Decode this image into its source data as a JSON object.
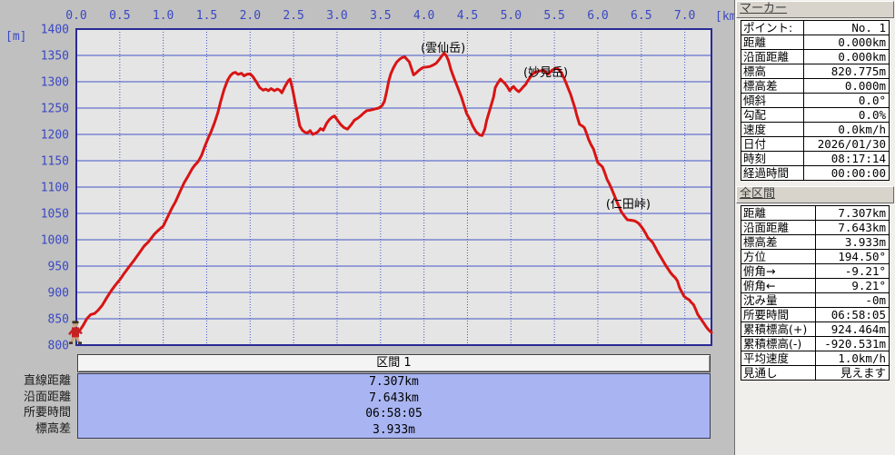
{
  "colors": {
    "window_bg": "#c0c0c0",
    "plot_bg": "#e5e5e5",
    "grid_blue": "#4455c8",
    "plot_border": "#2a2a96",
    "tick_text": "#3a48c4",
    "curve_red": "#d81414",
    "section_fill": "#a9b5f2",
    "panel_bg": "#f0efec",
    "header_bar": "#d8d4cc"
  },
  "chart_data": {
    "type": "line",
    "title": "",
    "x_unit_label": "[km]",
    "y_unit_label": "[m]",
    "xlabel": "",
    "ylabel": "",
    "xlim": [
      0,
      7.307
    ],
    "ylim": [
      800,
      1400
    ],
    "grid": true,
    "x_ticks": [
      "0.0",
      "0.5",
      "1.0",
      "1.5",
      "2.0",
      "2.5",
      "3.0",
      "3.5",
      "4.0",
      "4.5",
      "5.0",
      "5.5",
      "6.0",
      "6.5",
      "7.0"
    ],
    "y_ticks": [
      1400,
      1350,
      1300,
      1250,
      1200,
      1150,
      1100,
      1050,
      1000,
      950,
      900,
      850,
      800
    ],
    "annotations": [
      {
        "text": "(雲仙岳)",
        "x": 4.22,
        "y": 1357
      },
      {
        "text": "(妙見岳)",
        "x": 5.4,
        "y": 1310
      },
      {
        "text": "(仁田峠)",
        "x": 6.35,
        "y": 1060
      }
    ],
    "start_marker": {
      "icon": "hiker-icon",
      "x": 0,
      "y": 820
    },
    "series": [
      {
        "name": "標高",
        "color": "#d81414",
        "points": [
          [
            0.0,
            820
          ],
          [
            0.04,
            828
          ],
          [
            0.08,
            838
          ],
          [
            0.12,
            850
          ],
          [
            0.165,
            858
          ],
          [
            0.21,
            860
          ],
          [
            0.25,
            866
          ],
          [
            0.3,
            876
          ],
          [
            0.35,
            890
          ],
          [
            0.4,
            903
          ],
          [
            0.45,
            914
          ],
          [
            0.5,
            924
          ],
          [
            0.55,
            936
          ],
          [
            0.6,
            947
          ],
          [
            0.66,
            960
          ],
          [
            0.72,
            974
          ],
          [
            0.78,
            988
          ],
          [
            0.83,
            996
          ],
          [
            0.9,
            1011
          ],
          [
            0.95,
            1019
          ],
          [
            1.0,
            1026
          ],
          [
            1.05,
            1043
          ],
          [
            1.1,
            1060
          ],
          [
            1.14,
            1072
          ],
          [
            1.19,
            1090
          ],
          [
            1.24,
            1108
          ],
          [
            1.29,
            1122
          ],
          [
            1.33,
            1134
          ],
          [
            1.36,
            1141
          ],
          [
            1.4,
            1148
          ],
          [
            1.44,
            1160
          ],
          [
            1.48,
            1178
          ],
          [
            1.51,
            1190
          ],
          [
            1.55,
            1205
          ],
          [
            1.59,
            1222
          ],
          [
            1.63,
            1242
          ],
          [
            1.66,
            1262
          ],
          [
            1.7,
            1285
          ],
          [
            1.74,
            1303
          ],
          [
            1.77,
            1311
          ],
          [
            1.8,
            1316
          ],
          [
            1.83,
            1318
          ],
          [
            1.86,
            1314
          ],
          [
            1.9,
            1316
          ],
          [
            1.93,
            1311
          ],
          [
            1.96,
            1314
          ],
          [
            2.0,
            1315
          ],
          [
            2.03,
            1310
          ],
          [
            2.07,
            1300
          ],
          [
            2.11,
            1289
          ],
          [
            2.15,
            1284
          ],
          [
            2.18,
            1286
          ],
          [
            2.21,
            1283
          ],
          [
            2.24,
            1287
          ],
          [
            2.28,
            1283
          ],
          [
            2.31,
            1286
          ],
          [
            2.34,
            1284
          ],
          [
            2.365,
            1279
          ],
          [
            2.4,
            1291
          ],
          [
            2.44,
            1302
          ],
          [
            2.46,
            1305
          ],
          [
            2.49,
            1284
          ],
          [
            2.52,
            1258
          ],
          [
            2.545,
            1238
          ],
          [
            2.57,
            1216
          ],
          [
            2.6,
            1208
          ],
          [
            2.63,
            1204
          ],
          [
            2.66,
            1203
          ],
          [
            2.69,
            1207
          ],
          [
            2.72,
            1200
          ],
          [
            2.75,
            1202
          ],
          [
            2.78,
            1205
          ],
          [
            2.81,
            1211
          ],
          [
            2.84,
            1208
          ],
          [
            2.88,
            1221
          ],
          [
            2.91,
            1228
          ],
          [
            2.945,
            1233
          ],
          [
            2.97,
            1235
          ],
          [
            3.0,
            1228
          ],
          [
            3.04,
            1219
          ],
          [
            3.08,
            1213
          ],
          [
            3.12,
            1210
          ],
          [
            3.16,
            1218
          ],
          [
            3.2,
            1227
          ],
          [
            3.24,
            1231
          ],
          [
            3.27,
            1235
          ],
          [
            3.31,
            1241
          ],
          [
            3.34,
            1245
          ],
          [
            3.38,
            1246
          ],
          [
            3.41,
            1247
          ],
          [
            3.45,
            1249
          ],
          [
            3.48,
            1250
          ],
          [
            3.52,
            1255
          ],
          [
            3.545,
            1263
          ],
          [
            3.57,
            1281
          ],
          [
            3.595,
            1302
          ],
          [
            3.62,
            1316
          ],
          [
            3.65,
            1327
          ],
          [
            3.685,
            1337
          ],
          [
            3.72,
            1343
          ],
          [
            3.75,
            1346
          ],
          [
            3.78,
            1347
          ],
          [
            3.805,
            1342
          ],
          [
            3.83,
            1338
          ],
          [
            3.86,
            1323
          ],
          [
            3.88,
            1313
          ],
          [
            3.905,
            1316
          ],
          [
            3.93,
            1320
          ],
          [
            3.96,
            1324
          ],
          [
            3.99,
            1327
          ],
          [
            4.03,
            1328
          ],
          [
            4.07,
            1329
          ],
          [
            4.11,
            1332
          ],
          [
            4.14,
            1335
          ],
          [
            4.17,
            1341
          ],
          [
            4.2,
            1348
          ],
          [
            4.23,
            1354
          ],
          [
            4.255,
            1350
          ],
          [
            4.28,
            1341
          ],
          [
            4.31,
            1323
          ],
          [
            4.35,
            1305
          ],
          [
            4.39,
            1288
          ],
          [
            4.43,
            1271
          ],
          [
            4.46,
            1255
          ],
          [
            4.49,
            1240
          ],
          [
            4.53,
            1228
          ],
          [
            4.56,
            1216
          ],
          [
            4.6,
            1205
          ],
          [
            4.64,
            1199
          ],
          [
            4.67,
            1198
          ],
          [
            4.7,
            1210
          ],
          [
            4.72,
            1226
          ],
          [
            4.745,
            1240
          ],
          [
            4.77,
            1254
          ],
          [
            4.8,
            1271
          ],
          [
            4.82,
            1289
          ],
          [
            4.85,
            1298
          ],
          [
            4.88,
            1305
          ],
          [
            4.91,
            1300
          ],
          [
            4.93,
            1297
          ],
          [
            4.96,
            1290
          ],
          [
            4.985,
            1283
          ],
          [
            5.01,
            1288
          ],
          [
            5.03,
            1291
          ],
          [
            5.06,
            1285
          ],
          [
            5.09,
            1281
          ],
          [
            5.115,
            1285
          ],
          [
            5.14,
            1290
          ],
          [
            5.17,
            1295
          ],
          [
            5.19,
            1301
          ],
          [
            5.22,
            1308
          ],
          [
            5.245,
            1314
          ],
          [
            5.28,
            1318
          ],
          [
            5.32,
            1320
          ],
          [
            5.35,
            1321
          ],
          [
            5.37,
            1322
          ],
          [
            5.4,
            1318
          ],
          [
            5.425,
            1314
          ],
          [
            5.45,
            1318
          ],
          [
            5.475,
            1322
          ],
          [
            5.5,
            1324
          ],
          [
            5.53,
            1326
          ],
          [
            5.555,
            1322
          ],
          [
            5.58,
            1317
          ],
          [
            5.61,
            1307
          ],
          [
            5.635,
            1297
          ],
          [
            5.66,
            1287
          ],
          [
            5.685,
            1277
          ],
          [
            5.71,
            1264
          ],
          [
            5.735,
            1251
          ],
          [
            5.76,
            1235
          ],
          [
            5.79,
            1219
          ],
          [
            5.82,
            1216
          ],
          [
            5.845,
            1213
          ],
          [
            5.87,
            1202
          ],
          [
            5.895,
            1190
          ],
          [
            5.92,
            1181
          ],
          [
            5.95,
            1172
          ],
          [
            5.975,
            1159
          ],
          [
            6.0,
            1146
          ],
          [
            6.03,
            1142
          ],
          [
            6.055,
            1138
          ],
          [
            6.08,
            1127
          ],
          [
            6.105,
            1115
          ],
          [
            6.13,
            1107
          ],
          [
            6.155,
            1098
          ],
          [
            6.18,
            1088
          ],
          [
            6.21,
            1076
          ],
          [
            6.24,
            1064
          ],
          [
            6.27,
            1053
          ],
          [
            6.31,
            1044
          ],
          [
            6.34,
            1038
          ],
          [
            6.38,
            1037
          ],
          [
            6.42,
            1036
          ],
          [
            6.445,
            1034
          ],
          [
            6.47,
            1031
          ],
          [
            6.5,
            1025
          ],
          [
            6.525,
            1019
          ],
          [
            6.55,
            1012
          ],
          [
            6.575,
            1004
          ],
          [
            6.6,
            1000
          ],
          [
            6.63,
            995
          ],
          [
            6.66,
            986
          ],
          [
            6.685,
            978
          ],
          [
            6.71,
            971
          ],
          [
            6.735,
            964
          ],
          [
            6.76,
            957
          ],
          [
            6.785,
            950
          ],
          [
            6.81,
            944
          ],
          [
            6.835,
            938
          ],
          [
            6.86,
            933
          ],
          [
            6.89,
            928
          ],
          [
            6.915,
            922
          ],
          [
            6.94,
            909
          ],
          [
            6.965,
            901
          ],
          [
            6.99,
            893
          ],
          [
            7.02,
            889
          ],
          [
            7.05,
            886
          ],
          [
            7.075,
            881
          ],
          [
            7.1,
            877
          ],
          [
            7.125,
            868
          ],
          [
            7.15,
            858
          ],
          [
            7.175,
            852
          ],
          [
            7.2,
            846
          ],
          [
            7.225,
            840
          ],
          [
            7.25,
            834
          ],
          [
            7.28,
            828
          ],
          [
            7.307,
            824
          ]
        ]
      }
    ]
  },
  "section_panel": {
    "title": "区間 1",
    "rows": [
      {
        "label": "直線距離",
        "value": "7.307km"
      },
      {
        "label": "沿面距離",
        "value": "7.643km"
      },
      {
        "label": "所要時間",
        "value": "06:58:05"
      },
      {
        "label": "標高差",
        "value": "3.933m"
      }
    ]
  },
  "sidebar": {
    "marker": {
      "title": "マーカー",
      "rows": [
        {
          "label": "ポイント:",
          "value": "No. 1"
        },
        {
          "label": "距離",
          "value": "0.000km"
        },
        {
          "label": "沿面距離",
          "value": "0.000km"
        },
        {
          "label": "標高",
          "value": "820.775m"
        },
        {
          "label": "標高差",
          "value": "0.000m"
        },
        {
          "label": "傾斜",
          "value": "0.0°"
        },
        {
          "label": "勾配",
          "value": "0.0%"
        },
        {
          "label": "速度",
          "value": "0.0km/h"
        },
        {
          "label": "日付",
          "value": "2026/01/30"
        },
        {
          "label": "時刻",
          "value": "08:17:14"
        },
        {
          "label": "経過時間",
          "value": "00:00:00"
        }
      ]
    },
    "total": {
      "title": "全区間",
      "rows": [
        {
          "label": "距離",
          "value": "7.307km"
        },
        {
          "label": "沿面距離",
          "value": "7.643km"
        },
        {
          "label": "標高差",
          "value": "3.933m"
        },
        {
          "label": "方位",
          "value": "194.50°"
        },
        {
          "label": "俯角→",
          "value": "-9.21°"
        },
        {
          "label": "俯角←",
          "value": "9.21°"
        },
        {
          "label": "沈み量",
          "value": "-0m"
        },
        {
          "label": "所要時間",
          "value": "06:58:05"
        },
        {
          "label": "累積標高(+)",
          "value": "924.464m"
        },
        {
          "label": "累積標高(-)",
          "value": "-920.531m"
        },
        {
          "label": "平均速度",
          "value": "1.0km/h"
        },
        {
          "label": "見通し",
          "value": "見えます"
        }
      ]
    }
  }
}
